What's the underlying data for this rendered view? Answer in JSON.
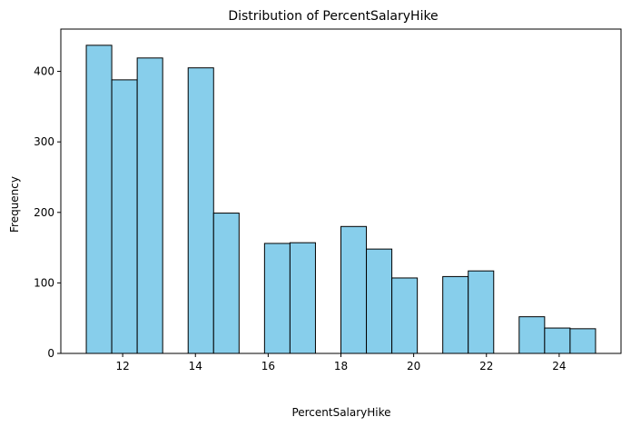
{
  "chart_data": {
    "type": "bar",
    "subtype": "histogram",
    "title": "Distribution of PercentSalaryHike",
    "xlabel": "PercentSalaryHike",
    "ylabel": "Frequency",
    "xlim": [
      10.3,
      25.7
    ],
    "ylim": [
      0,
      460
    ],
    "xticks": [
      12,
      14,
      16,
      18,
      20,
      22,
      24
    ],
    "yticks": [
      0,
      100,
      200,
      300,
      400
    ],
    "bin_width": 0.7,
    "bins": [
      {
        "start": 11.0,
        "end": 11.7,
        "count": 437
      },
      {
        "start": 11.7,
        "end": 12.4,
        "count": 388
      },
      {
        "start": 12.4,
        "end": 13.1,
        "count": 419
      },
      {
        "start": 13.1,
        "end": 13.8,
        "count": 0
      },
      {
        "start": 13.8,
        "end": 14.5,
        "count": 405
      },
      {
        "start": 14.5,
        "end": 15.2,
        "count": 199
      },
      {
        "start": 15.2,
        "end": 15.9,
        "count": 0
      },
      {
        "start": 15.9,
        "end": 16.6,
        "count": 156
      },
      {
        "start": 16.6,
        "end": 17.3,
        "count": 157
      },
      {
        "start": 17.3,
        "end": 18.0,
        "count": 0
      },
      {
        "start": 18.0,
        "end": 18.7,
        "count": 180
      },
      {
        "start": 18.7,
        "end": 19.4,
        "count": 148
      },
      {
        "start": 19.4,
        "end": 20.1,
        "count": 107
      },
      {
        "start": 20.1,
        "end": 20.8,
        "count": 0
      },
      {
        "start": 20.8,
        "end": 21.5,
        "count": 109
      },
      {
        "start": 21.5,
        "end": 22.2,
        "count": 117
      },
      {
        "start": 22.2,
        "end": 22.9,
        "count": 0
      },
      {
        "start": 22.9,
        "end": 23.6,
        "count": 52
      },
      {
        "start": 23.6,
        "end": 24.3,
        "count": 36
      },
      {
        "start": 24.3,
        "end": 25.0,
        "count": 35
      }
    ],
    "bar_color": "#87CEEB",
    "edge_color": "#000000",
    "grid": false,
    "legend": "none"
  }
}
